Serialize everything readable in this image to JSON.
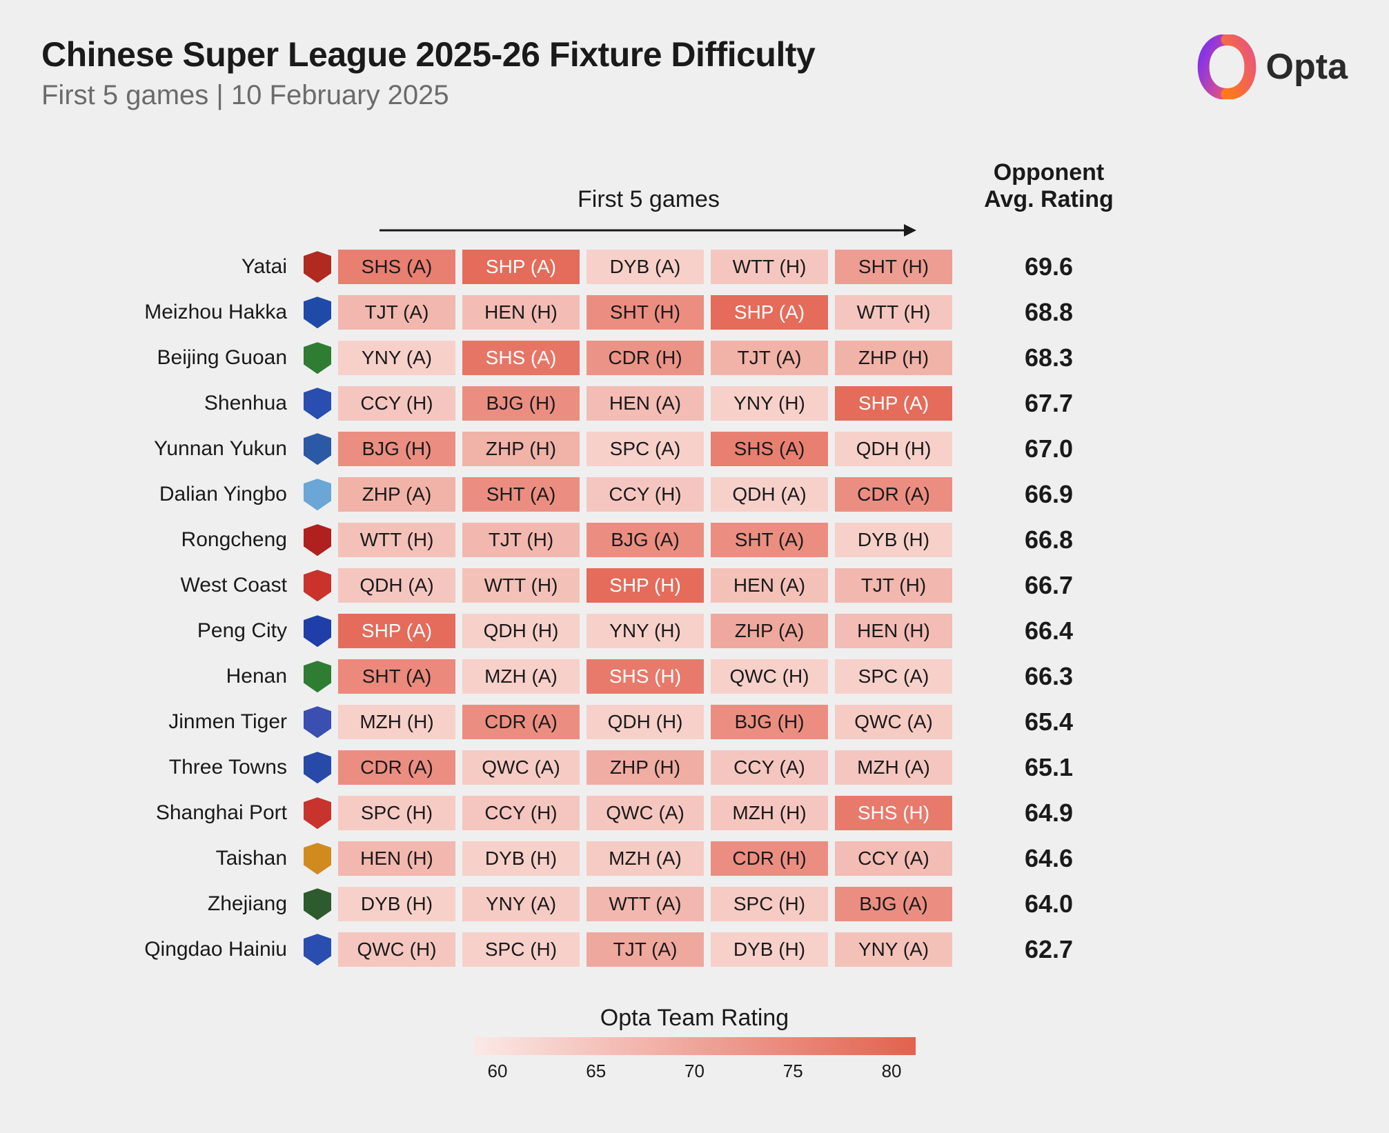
{
  "header": {
    "title": "Chinese Super League 2025-26 Fixture Difficulty",
    "subtitle": "First 5 games | 10 February 2025"
  },
  "brand": {
    "name": "Opta"
  },
  "column_headers": {
    "first5": "First 5 games",
    "avg_line1": "Opponent",
    "avg_line2": "Avg. Rating"
  },
  "legend": {
    "title": "Opta Team Rating",
    "min": 55,
    "max": 82,
    "ticks": [
      "60",
      "65",
      "70",
      "75",
      "80"
    ],
    "color_low": "#fbe9e6",
    "color_high": "#e3614f"
  },
  "style": {
    "cell_text_dark": "#1a1a1a",
    "cell_text_light": "#ffffff",
    "light_text_threshold": 77
  },
  "teams": [
    {
      "name": "Yatai",
      "crest_color": "#b02a1f",
      "avg": "69.6",
      "games": [
        {
          "label": "SHS (A)",
          "rating": 76
        },
        {
          "label": "SHP (A)",
          "rating": 80
        },
        {
          "label": "DYB (A)",
          "rating": 60
        },
        {
          "label": "WTT (H)",
          "rating": 62
        },
        {
          "label": "SHT (H)",
          "rating": 70
        }
      ]
    },
    {
      "name": "Meizhou Hakka",
      "crest_color": "#1f4aa8",
      "avg": "68.8",
      "games": [
        {
          "label": "TJT (A)",
          "rating": 65
        },
        {
          "label": "HEN (H)",
          "rating": 64
        },
        {
          "label": "SHT (H)",
          "rating": 73
        },
        {
          "label": "SHP (A)",
          "rating": 80
        },
        {
          "label": "WTT (H)",
          "rating": 62
        }
      ]
    },
    {
      "name": "Beijing Guoan",
      "crest_color": "#2e7d32",
      "avg": "68.3",
      "games": [
        {
          "label": "YNY (A)",
          "rating": 60
        },
        {
          "label": "SHS (A)",
          "rating": 78
        },
        {
          "label": "CDR (H)",
          "rating": 72
        },
        {
          "label": "TJT (A)",
          "rating": 66
        },
        {
          "label": "ZHP (H)",
          "rating": 66
        }
      ]
    },
    {
      "name": "Shenhua",
      "crest_color": "#2a4db0",
      "avg": "67.7",
      "games": [
        {
          "label": "CCY (H)",
          "rating": 62
        },
        {
          "label": "BJG (H)",
          "rating": 73
        },
        {
          "label": "HEN (A)",
          "rating": 64
        },
        {
          "label": "YNY (H)",
          "rating": 60
        },
        {
          "label": "SHP (A)",
          "rating": 80
        }
      ]
    },
    {
      "name": "Yunnan Yukun",
      "crest_color": "#2b59a6",
      "avg": "67.0",
      "games": [
        {
          "label": "BJG (H)",
          "rating": 73
        },
        {
          "label": "ZHP (H)",
          "rating": 66
        },
        {
          "label": "SPC (A)",
          "rating": 60
        },
        {
          "label": "SHS (A)",
          "rating": 76
        },
        {
          "label": "QDH (H)",
          "rating": 60
        }
      ]
    },
    {
      "name": "Dalian Yingbo",
      "crest_color": "#6aa6d6",
      "avg": "66.9",
      "games": [
        {
          "label": "ZHP (A)",
          "rating": 66
        },
        {
          "label": "SHT (A)",
          "rating": 73
        },
        {
          "label": "CCY (H)",
          "rating": 62
        },
        {
          "label": "QDH (A)",
          "rating": 60
        },
        {
          "label": "CDR (A)",
          "rating": 73
        }
      ]
    },
    {
      "name": "Rongcheng",
      "crest_color": "#b0201e",
      "avg": "66.8",
      "games": [
        {
          "label": "WTT (H)",
          "rating": 63
        },
        {
          "label": "TJT (H)",
          "rating": 65
        },
        {
          "label": "BJG (A)",
          "rating": 73
        },
        {
          "label": "SHT (A)",
          "rating": 73
        },
        {
          "label": "DYB (H)",
          "rating": 60
        }
      ]
    },
    {
      "name": "West Coast",
      "crest_color": "#c9332c",
      "avg": "66.7",
      "games": [
        {
          "label": "QDH (A)",
          "rating": 62
        },
        {
          "label": "WTT (H)",
          "rating": 63
        },
        {
          "label": "SHP (H)",
          "rating": 80
        },
        {
          "label": "HEN (A)",
          "rating": 63
        },
        {
          "label": "TJT (H)",
          "rating": 65
        }
      ]
    },
    {
      "name": "Peng City",
      "crest_color": "#1f3ea8",
      "avg": "66.4",
      "games": [
        {
          "label": "SHP (A)",
          "rating": 80
        },
        {
          "label": "QDH (H)",
          "rating": 60
        },
        {
          "label": "YNY (H)",
          "rating": 60
        },
        {
          "label": "ZHP (A)",
          "rating": 68
        },
        {
          "label": "HEN (H)",
          "rating": 64
        }
      ]
    },
    {
      "name": "Henan",
      "crest_color": "#2e7d32",
      "avg": "66.3",
      "games": [
        {
          "label": "SHT (A)",
          "rating": 74
        },
        {
          "label": "MZH (A)",
          "rating": 60
        },
        {
          "label": "SHS (H)",
          "rating": 77
        },
        {
          "label": "QWC (H)",
          "rating": 60
        },
        {
          "label": "SPC (A)",
          "rating": 60
        }
      ]
    },
    {
      "name": "Jinmen Tiger",
      "crest_color": "#3a4fb0",
      "avg": "65.4",
      "games": [
        {
          "label": "MZH (H)",
          "rating": 60
        },
        {
          "label": "CDR (A)",
          "rating": 73
        },
        {
          "label": "QDH (H)",
          "rating": 60
        },
        {
          "label": "BJG (H)",
          "rating": 73
        },
        {
          "label": "QWC (A)",
          "rating": 61
        }
      ]
    },
    {
      "name": "Three Towns",
      "crest_color": "#274aa9",
      "avg": "65.1",
      "games": [
        {
          "label": "CDR (A)",
          "rating": 73
        },
        {
          "label": "QWC (A)",
          "rating": 61
        },
        {
          "label": "ZHP (H)",
          "rating": 67
        },
        {
          "label": "CCY (A)",
          "rating": 62
        },
        {
          "label": "MZH (A)",
          "rating": 62
        }
      ]
    },
    {
      "name": "Shanghai Port",
      "crest_color": "#c8332e",
      "avg": "64.9",
      "games": [
        {
          "label": "SPC (H)",
          "rating": 61
        },
        {
          "label": "CCY (H)",
          "rating": 62
        },
        {
          "label": "QWC (A)",
          "rating": 62
        },
        {
          "label": "MZH (H)",
          "rating": 62
        },
        {
          "label": "SHS (H)",
          "rating": 77
        }
      ]
    },
    {
      "name": "Taishan",
      "crest_color": "#d18a1e",
      "avg": "64.6",
      "games": [
        {
          "label": "HEN (H)",
          "rating": 65
        },
        {
          "label": "DYB (H)",
          "rating": 60
        },
        {
          "label": "MZH (A)",
          "rating": 61
        },
        {
          "label": "CDR (H)",
          "rating": 73
        },
        {
          "label": "CCY (A)",
          "rating": 64
        }
      ]
    },
    {
      "name": "Zhejiang",
      "crest_color": "#2e5b2e",
      "avg": "64.0",
      "games": [
        {
          "label": "DYB (H)",
          "rating": 60
        },
        {
          "label": "YNY (A)",
          "rating": 61
        },
        {
          "label": "WTT (A)",
          "rating": 65
        },
        {
          "label": "SPC (H)",
          "rating": 61
        },
        {
          "label": "BJG (A)",
          "rating": 73
        }
      ]
    },
    {
      "name": "Qingdao Hainiu",
      "crest_color": "#2a4db0",
      "avg": "62.7",
      "games": [
        {
          "label": "QWC (H)",
          "rating": 62
        },
        {
          "label": "SPC (H)",
          "rating": 60
        },
        {
          "label": "TJT (A)",
          "rating": 68
        },
        {
          "label": "DYB (H)",
          "rating": 60
        },
        {
          "label": "YNY (A)",
          "rating": 63
        }
      ]
    }
  ]
}
